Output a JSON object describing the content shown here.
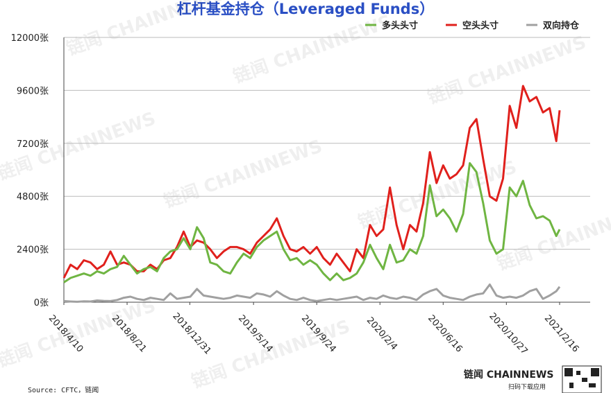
{
  "chart_data": {
    "type": "line",
    "title": "杠杆基金持仓（Leveraged Funds）",
    "x": [
      "2018/4/10",
      "2018/4/24",
      "2018/5/8",
      "2018/5/22",
      "2018/6/5",
      "2018/6/19",
      "2018/7/3",
      "2018/7/17",
      "2018/7/31",
      "2018/8/14",
      "2018/8/28",
      "2018/9/11",
      "2018/9/25",
      "2018/10/9",
      "2018/10/23",
      "2018/11/6",
      "2018/11/20",
      "2018/12/4",
      "2018/12/18",
      "2019/1/1",
      "2019/1/15",
      "2019/1/29",
      "2019/2/12",
      "2019/2/26",
      "2019/3/12",
      "2019/3/26",
      "2019/4/9",
      "2019/4/23",
      "2019/5/7",
      "2019/5/21",
      "2019/6/4",
      "2019/6/18",
      "2019/7/2",
      "2019/7/16",
      "2019/7/30",
      "2019/8/13",
      "2019/8/27",
      "2019/9/10",
      "2019/9/24",
      "2019/10/8",
      "2019/10/22",
      "2019/11/5",
      "2019/11/19",
      "2019/12/3",
      "2019/12/17",
      "2019/12/31",
      "2020/1/14",
      "2020/1/28",
      "2020/2/11",
      "2020/2/25",
      "2020/3/10",
      "2020/3/24",
      "2020/4/7",
      "2020/4/21",
      "2020/5/5",
      "2020/5/19",
      "2020/6/2",
      "2020/6/16",
      "2020/6/30",
      "2020/7/14",
      "2020/7/28",
      "2020/8/11",
      "2020/8/25",
      "2020/9/8",
      "2020/9/22",
      "2020/10/6",
      "2020/10/20",
      "2020/11/3",
      "2020/11/17",
      "2020/12/1",
      "2020/12/15",
      "2020/12/29",
      "2021/1/12",
      "2021/1/26",
      "2021/2/9",
      "2021/2/16"
    ],
    "series": [
      {
        "name": "多头头寸",
        "color": "#6fb542",
        "values": [
          900,
          1100,
          1200,
          1300,
          1200,
          1400,
          1300,
          1500,
          1600,
          2100,
          1700,
          1300,
          1500,
          1600,
          1400,
          2000,
          2300,
          2400,
          2900,
          2400,
          3400,
          2900,
          1800,
          1700,
          1400,
          1300,
          1800,
          2200,
          2000,
          2500,
          2800,
          3000,
          3200,
          2400,
          1900,
          2000,
          1700,
          1900,
          1700,
          1300,
          1000,
          1300,
          1000,
          1100,
          1300,
          1800,
          2600,
          2000,
          1500,
          2600,
          1800,
          1900,
          2400,
          2200,
          3000,
          5300,
          3900,
          4200,
          3800,
          3200,
          4000,
          6300,
          5900,
          4500,
          2800,
          2200,
          2400,
          5200,
          4800,
          5500,
          4400,
          3800,
          3900,
          3700,
          3000,
          3300
        ]
      },
      {
        "name": "空头头寸",
        "color": "#e0201c",
        "values": [
          1100,
          1700,
          1500,
          1900,
          1800,
          1500,
          1700,
          2300,
          1700,
          1800,
          1700,
          1400,
          1400,
          1700,
          1500,
          1900,
          2000,
          2500,
          3200,
          2500,
          2800,
          2700,
          2400,
          2000,
          2300,
          2500,
          2500,
          2400,
          2200,
          2700,
          3000,
          3300,
          3800,
          3000,
          2400,
          2300,
          2500,
          2200,
          2500,
          2000,
          1700,
          2200,
          1800,
          1400,
          2400,
          2000,
          3500,
          3000,
          3300,
          5200,
          3500,
          2400,
          3500,
          3200,
          4500,
          6800,
          5400,
          6200,
          5600,
          5800,
          6200,
          7900,
          8300,
          6500,
          4800,
          4600,
          5600,
          8900,
          7900,
          9800,
          9100,
          9300,
          8600,
          8800,
          7300,
          8700
        ]
      },
      {
        "name": "双向持仓",
        "color": "#a0a0a0",
        "values": [
          50,
          30,
          20,
          40,
          30,
          80,
          60,
          50,
          100,
          200,
          250,
          150,
          100,
          200,
          150,
          100,
          400,
          150,
          200,
          250,
          600,
          300,
          250,
          200,
          150,
          200,
          300,
          250,
          200,
          400,
          350,
          250,
          500,
          300,
          150,
          100,
          200,
          100,
          50,
          100,
          150,
          100,
          150,
          200,
          250,
          100,
          200,
          150,
          300,
          200,
          150,
          250,
          200,
          100,
          350,
          500,
          600,
          300,
          200,
          150,
          100,
          250,
          350,
          400,
          800,
          300,
          200,
          250,
          200,
          300,
          500,
          600,
          150,
          300,
          500,
          700
        ]
      }
    ],
    "xlim": [
      "2018/4/10",
      "2021/2/16"
    ],
    "xticks": [
      "2018/4/10",
      "2018/8/21",
      "2018/12/31",
      "2019/5/14",
      "2019/9/24",
      "2020/2/4",
      "2020/6/16",
      "2020/10/27",
      "2021/2/16"
    ],
    "ylim": [
      0,
      12000
    ],
    "yticks": [
      {
        "value": 0,
        "label": "0张"
      },
      {
        "value": 2400,
        "label": "2400张"
      },
      {
        "value": 4800,
        "label": "4800张"
      },
      {
        "value": 7200,
        "label": "7200张"
      },
      {
        "value": 9600,
        "label": "9600张"
      },
      {
        "value": 12000,
        "label": "12000张"
      }
    ],
    "grid": true
  },
  "watermark": "链闻 CHAINNEWS",
  "source": "Source: CFTC，链闻",
  "brand": "链闻 CHAINNEWS",
  "brand_sub": "扫码下载应用"
}
